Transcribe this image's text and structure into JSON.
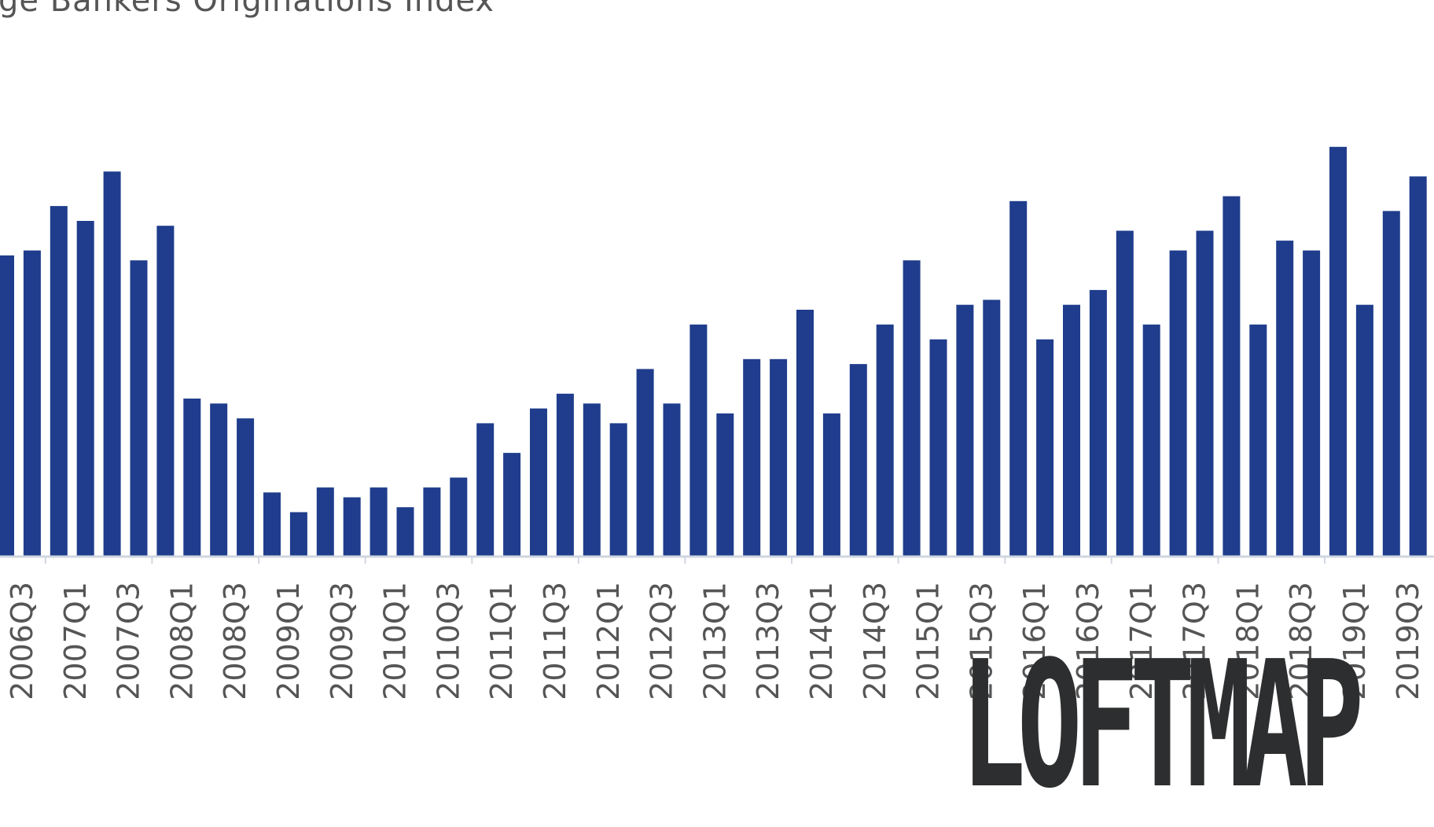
{
  "chart_data": {
    "type": "bar",
    "title": "ge Bankers Originations Index",
    "xlabel": "",
    "ylabel": "",
    "ylim": [
      0,
      100
    ],
    "grid": false,
    "legend": "none",
    "categories": [
      "2006Q3",
      "2006Q4",
      "2007Q1",
      "2007Q2",
      "2007Q3",
      "2007Q4",
      "2008Q1",
      "2008Q2",
      "2008Q3",
      "2008Q4",
      "2009Q1",
      "2009Q2",
      "2009Q3",
      "2009Q4",
      "2010Q1",
      "2010Q2",
      "2010Q3",
      "2010Q4",
      "2011Q1",
      "2011Q2",
      "2011Q3",
      "2011Q4",
      "2012Q1",
      "2012Q2",
      "2012Q3",
      "2012Q4",
      "2013Q1",
      "2013Q2",
      "2013Q3",
      "2013Q4",
      "2014Q1",
      "2014Q2",
      "2014Q3",
      "2014Q4",
      "2015Q1",
      "2015Q2",
      "2015Q3",
      "2015Q4",
      "2016Q1",
      "2016Q2",
      "2016Q3",
      "2016Q4",
      "2017Q1",
      "2017Q2",
      "2017Q3",
      "2017Q4",
      "2018Q1",
      "2018Q2",
      "2018Q3",
      "2018Q4",
      "2019Q1",
      "2019Q2",
      "2019Q3",
      "2019Q4"
    ],
    "values": [
      61,
      62,
      71,
      68,
      78,
      60,
      67,
      32,
      31,
      28,
      13,
      9,
      14,
      12,
      14,
      10,
      14,
      16,
      27,
      21,
      30,
      33,
      31,
      27,
      38,
      31,
      47,
      29,
      40,
      40,
      50,
      29,
      39,
      47,
      60,
      44,
      51,
      52,
      72,
      44,
      51,
      54,
      66,
      47,
      62,
      66,
      73,
      47,
      64,
      62,
      83,
      51,
      70,
      77
    ],
    "tick_labels": [
      "2006Q3",
      "2007Q1",
      "2007Q3",
      "2008Q1",
      "2008Q3",
      "2009Q1",
      "2009Q3",
      "2010Q1",
      "2010Q3",
      "2011Q1",
      "2011Q3",
      "2012Q1",
      "2012Q3",
      "2013Q1",
      "2013Q3",
      "2014Q1",
      "2014Q3",
      "2015Q1",
      "2015Q3",
      "2016Q1",
      "2016Q3",
      "2017Q1",
      "2017Q3",
      "2018Q1",
      "2018Q3",
      "2019Q1",
      "2019Q3"
    ],
    "colors": {
      "bar": "#1f3d8c",
      "axis": "#cfd6e0",
      "text": "#555555"
    }
  },
  "logo": {
    "text": "LOFTMAP"
  }
}
